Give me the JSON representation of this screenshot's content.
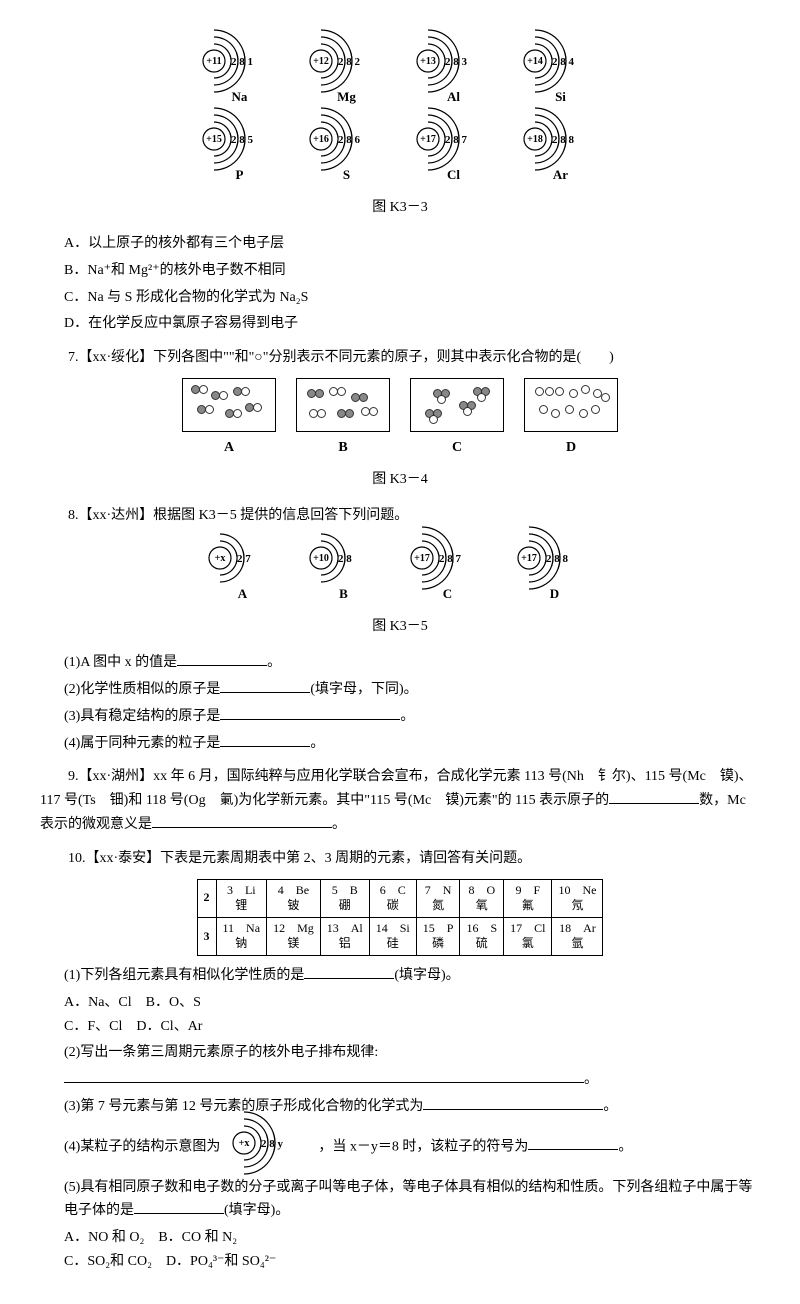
{
  "fig3": {
    "row1": [
      {
        "core": "+11",
        "shells": "2 8 1",
        "sym": "Na"
      },
      {
        "core": "+12",
        "shells": "2 8 2",
        "sym": "Mg"
      },
      {
        "core": "+13",
        "shells": "2 8 3",
        "sym": "Al"
      },
      {
        "core": "+14",
        "shells": "2 8 4",
        "sym": "Si"
      }
    ],
    "row2": [
      {
        "core": "+15",
        "shells": "2 8 5",
        "sym": "P"
      },
      {
        "core": "+16",
        "shells": "2 8 6",
        "sym": "S"
      },
      {
        "core": "+17",
        "shells": "2 8 7",
        "sym": "Cl"
      },
      {
        "core": "+18",
        "shells": "2 8 8",
        "sym": "Ar"
      }
    ],
    "caption": "图 K3－3"
  },
  "q6opts": {
    "a": "A．以上原子的核外都有三个电子层",
    "b": "B．Na⁺和 Mg²⁺的核外电子数不相同",
    "c": "C．Na 与 S 形成化合物的化学式为 Na₂S",
    "d": "D．在化学反应中氯原子容易得到电子"
  },
  "q7": {
    "text": "7.【xx·绥化】下列各图中\"\"和\"○\"分别表示不同元素的原子，则其中表示化合物的是(　　)",
    "labels": [
      "A",
      "B",
      "C",
      "D"
    ],
    "caption": "图 K3－4"
  },
  "q8": {
    "intro": "8.【xx·达州】根据图 K3－5 提供的信息回答下列问题。",
    "atoms": [
      {
        "core": "+x",
        "shells": "2 7",
        "sym": "A"
      },
      {
        "core": "+10",
        "shells": "2 8",
        "sym": "B"
      },
      {
        "core": "+17",
        "shells": "2 8 7",
        "sym": "C"
      },
      {
        "core": "+17",
        "shells": "2 8 8",
        "sym": "D"
      }
    ],
    "caption": "图 K3－5",
    "s1": "(1)A 图中 x 的值是",
    "s1b": "。",
    "s2": "(2)化学性质相似的原子是",
    "s2b": "(填字母，下同)。",
    "s3": "(3)具有稳定结构的原子是",
    "s3b": "。",
    "s4": "(4)属于同种元素的粒子是",
    "s4b": "。"
  },
  "q9": {
    "text": "9.【xx·湖州】xx 年 6 月，国际纯粹与应用化学联合会宣布，合成化学元素 113 号(Nh　钅尔)、115 号(Mc　镆)、117 号(Ts　钿)和 118 号(Og　氭)为化学新元素。其中\"115 号(Mc　镆)元素\"的 115 表示原子的",
    "text2": "数，Mc 表示的微观意义是",
    "text3": "。"
  },
  "q10": {
    "intro": "10.【xx·泰安】下表是元素周期表中第 2、3 周期的元素，请回答有关问题。",
    "periods": [
      "2",
      "3"
    ],
    "r2": [
      {
        "n": "3",
        "s": "Li",
        "c": "锂"
      },
      {
        "n": "4",
        "s": "Be",
        "c": "铍"
      },
      {
        "n": "5",
        "s": "B",
        "c": "硼"
      },
      {
        "n": "6",
        "s": "C",
        "c": "碳"
      },
      {
        "n": "7",
        "s": "N",
        "c": "氮"
      },
      {
        "n": "8",
        "s": "O",
        "c": "氧"
      },
      {
        "n": "9",
        "s": "F",
        "c": "氟"
      },
      {
        "n": "10",
        "s": "Ne",
        "c": "氖"
      }
    ],
    "r3": [
      {
        "n": "11",
        "s": "Na",
        "c": "钠"
      },
      {
        "n": "12",
        "s": "Mg",
        "c": "镁"
      },
      {
        "n": "13",
        "s": "Al",
        "c": "铝"
      },
      {
        "n": "14",
        "s": "Si",
        "c": "硅"
      },
      {
        "n": "15",
        "s": "P",
        "c": "磷"
      },
      {
        "n": "16",
        "s": "S",
        "c": "硫"
      },
      {
        "n": "17",
        "s": "Cl",
        "c": "氯"
      },
      {
        "n": "18",
        "s": "Ar",
        "c": "氩"
      }
    ],
    "s1": "(1)下列各组元素具有相似化学性质的是",
    "s1b": "(填字母)。",
    "o1": "A．Na、Cl　B．O、S",
    "o2": "C．F、Cl　D．Cl、Ar",
    "s2": "(2)写出一条第三周期元素原子的核外电子排布规律:",
    "s2b": "。",
    "s3": "(3)第 7 号元素与第 12 号元素的原子形成化合物的化学式为",
    "s3b": "。",
    "s4a": "(4)某粒子的结构示意图为",
    "s4atom": {
      "core": "+x",
      "shells": "2 8 y"
    },
    "s4b": "，当 x－y＝8 时，该粒子的符号为",
    "s4c": "。",
    "s5": "(5)具有相同原子数和电子数的分子或离子叫等电子体，等电子体具有相似的结构和性质。下列各组粒子中属于等电子体的是",
    "s5b": "(填字母)。",
    "o5a": "A．NO 和 O₂　B．CO 和 N₂",
    "o5b": "C．SO₂和 CO₂　D．PO₄³⁻和 SO₄²⁻"
  }
}
